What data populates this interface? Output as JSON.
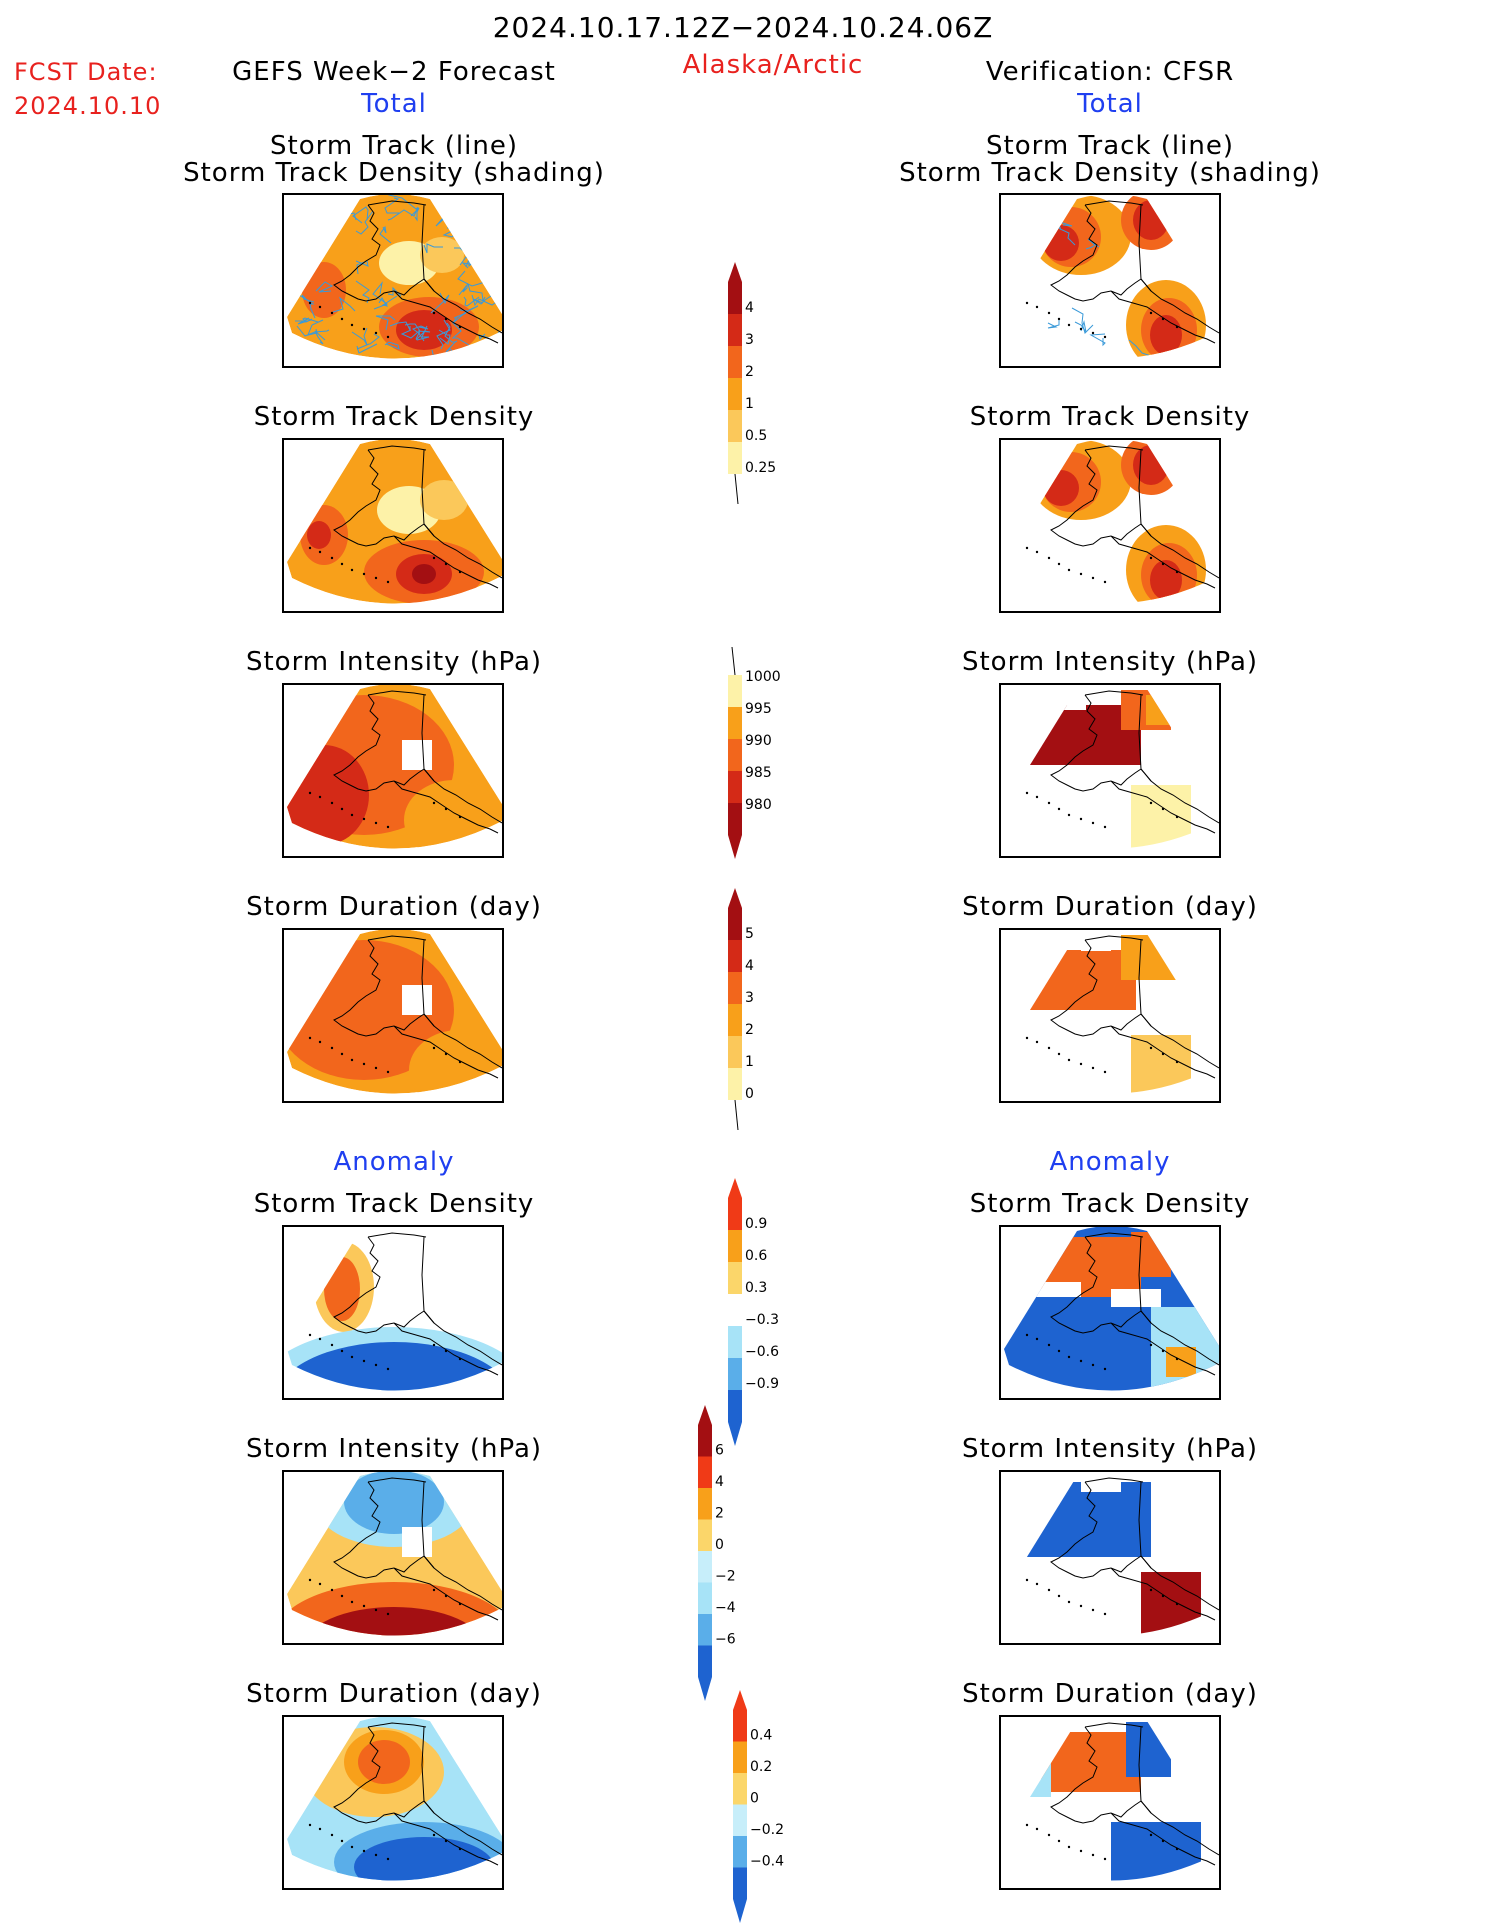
{
  "header": {
    "period": "2024.10.17.12Z−2024.10.24.06Z",
    "fcst_label": "FCST Date:",
    "fcst_date": "2024.10.10",
    "left_title": "GEFS Week−2 Forecast",
    "region": "Alaska/Arctic",
    "right_title": "Verification: CFSR",
    "total_left": "Total",
    "total_right": "Total",
    "anomaly_left": "Anomaly",
    "anomaly_right": "Anomaly"
  },
  "panel_titles": {
    "track_line": "Storm Track (line)",
    "track_shading": "Storm Track Density (shading)",
    "density": "Storm Track Density",
    "intensity": "Storm Intensity (hPa)",
    "duration": "Storm Duration (day)"
  },
  "colorbars": {
    "density_total": {
      "labels": [
        "4",
        "3",
        "2",
        "1",
        "0.5",
        "0.25"
      ],
      "colors": [
        "#a30f12",
        "#d42a17",
        "#f2661c",
        "#f8a01a",
        "#fbc85a",
        "#fdf2a8"
      ]
    },
    "intensity_total": {
      "labels": [
        "1000",
        "995",
        "990",
        "985",
        "980"
      ],
      "colors": [
        "#fdf2a8",
        "#f8a01a",
        "#f2661c",
        "#d42a17",
        "#a30f12"
      ]
    },
    "duration_total": {
      "labels": [
        "5",
        "4",
        "3",
        "2",
        "1",
        "0"
      ],
      "colors": [
        "#a30f12",
        "#d42a17",
        "#f2661c",
        "#f8a01a",
        "#fbc85a",
        "#fdf2a8"
      ]
    },
    "density_anom": {
      "labels": [
        "0.9",
        "0.6",
        "0.3",
        "−0.3",
        "−0.6",
        "−0.9"
      ],
      "colors": [
        "#f03a17",
        "#f8a01a",
        "#fbd66a",
        "#ffffff",
        "#a7e3f7",
        "#5aaee9",
        "#1e63d0"
      ]
    },
    "intensity_anom": {
      "labels": [
        "6",
        "4",
        "2",
        "0",
        "−2",
        "−4",
        "−6"
      ],
      "colors": [
        "#a30f12",
        "#f03a17",
        "#f8a01a",
        "#fbd66a",
        "#c7eefa",
        "#a7e3f7",
        "#5aaee9",
        "#1e63d0"
      ]
    },
    "duration_anom": {
      "labels": [
        "0.4",
        "0.2",
        "0",
        "−0.2",
        "−0.4"
      ],
      "colors": [
        "#f03a17",
        "#f8a01a",
        "#fbd66a",
        "#c7eefa",
        "#5aaee9",
        "#1e63d0"
      ]
    }
  },
  "map_colors": {
    "white": "#ffffff",
    "pale": "#fdf2a8",
    "light_orange": "#fbc85a",
    "orange": "#f8a01a",
    "dark_orange": "#f2661c",
    "red": "#d42a17",
    "dark_red": "#a30f12",
    "light_blue": "#a7e3f7",
    "mid_blue": "#5aaee9",
    "blue": "#1e63d0",
    "track": "#3a9ad9"
  }
}
